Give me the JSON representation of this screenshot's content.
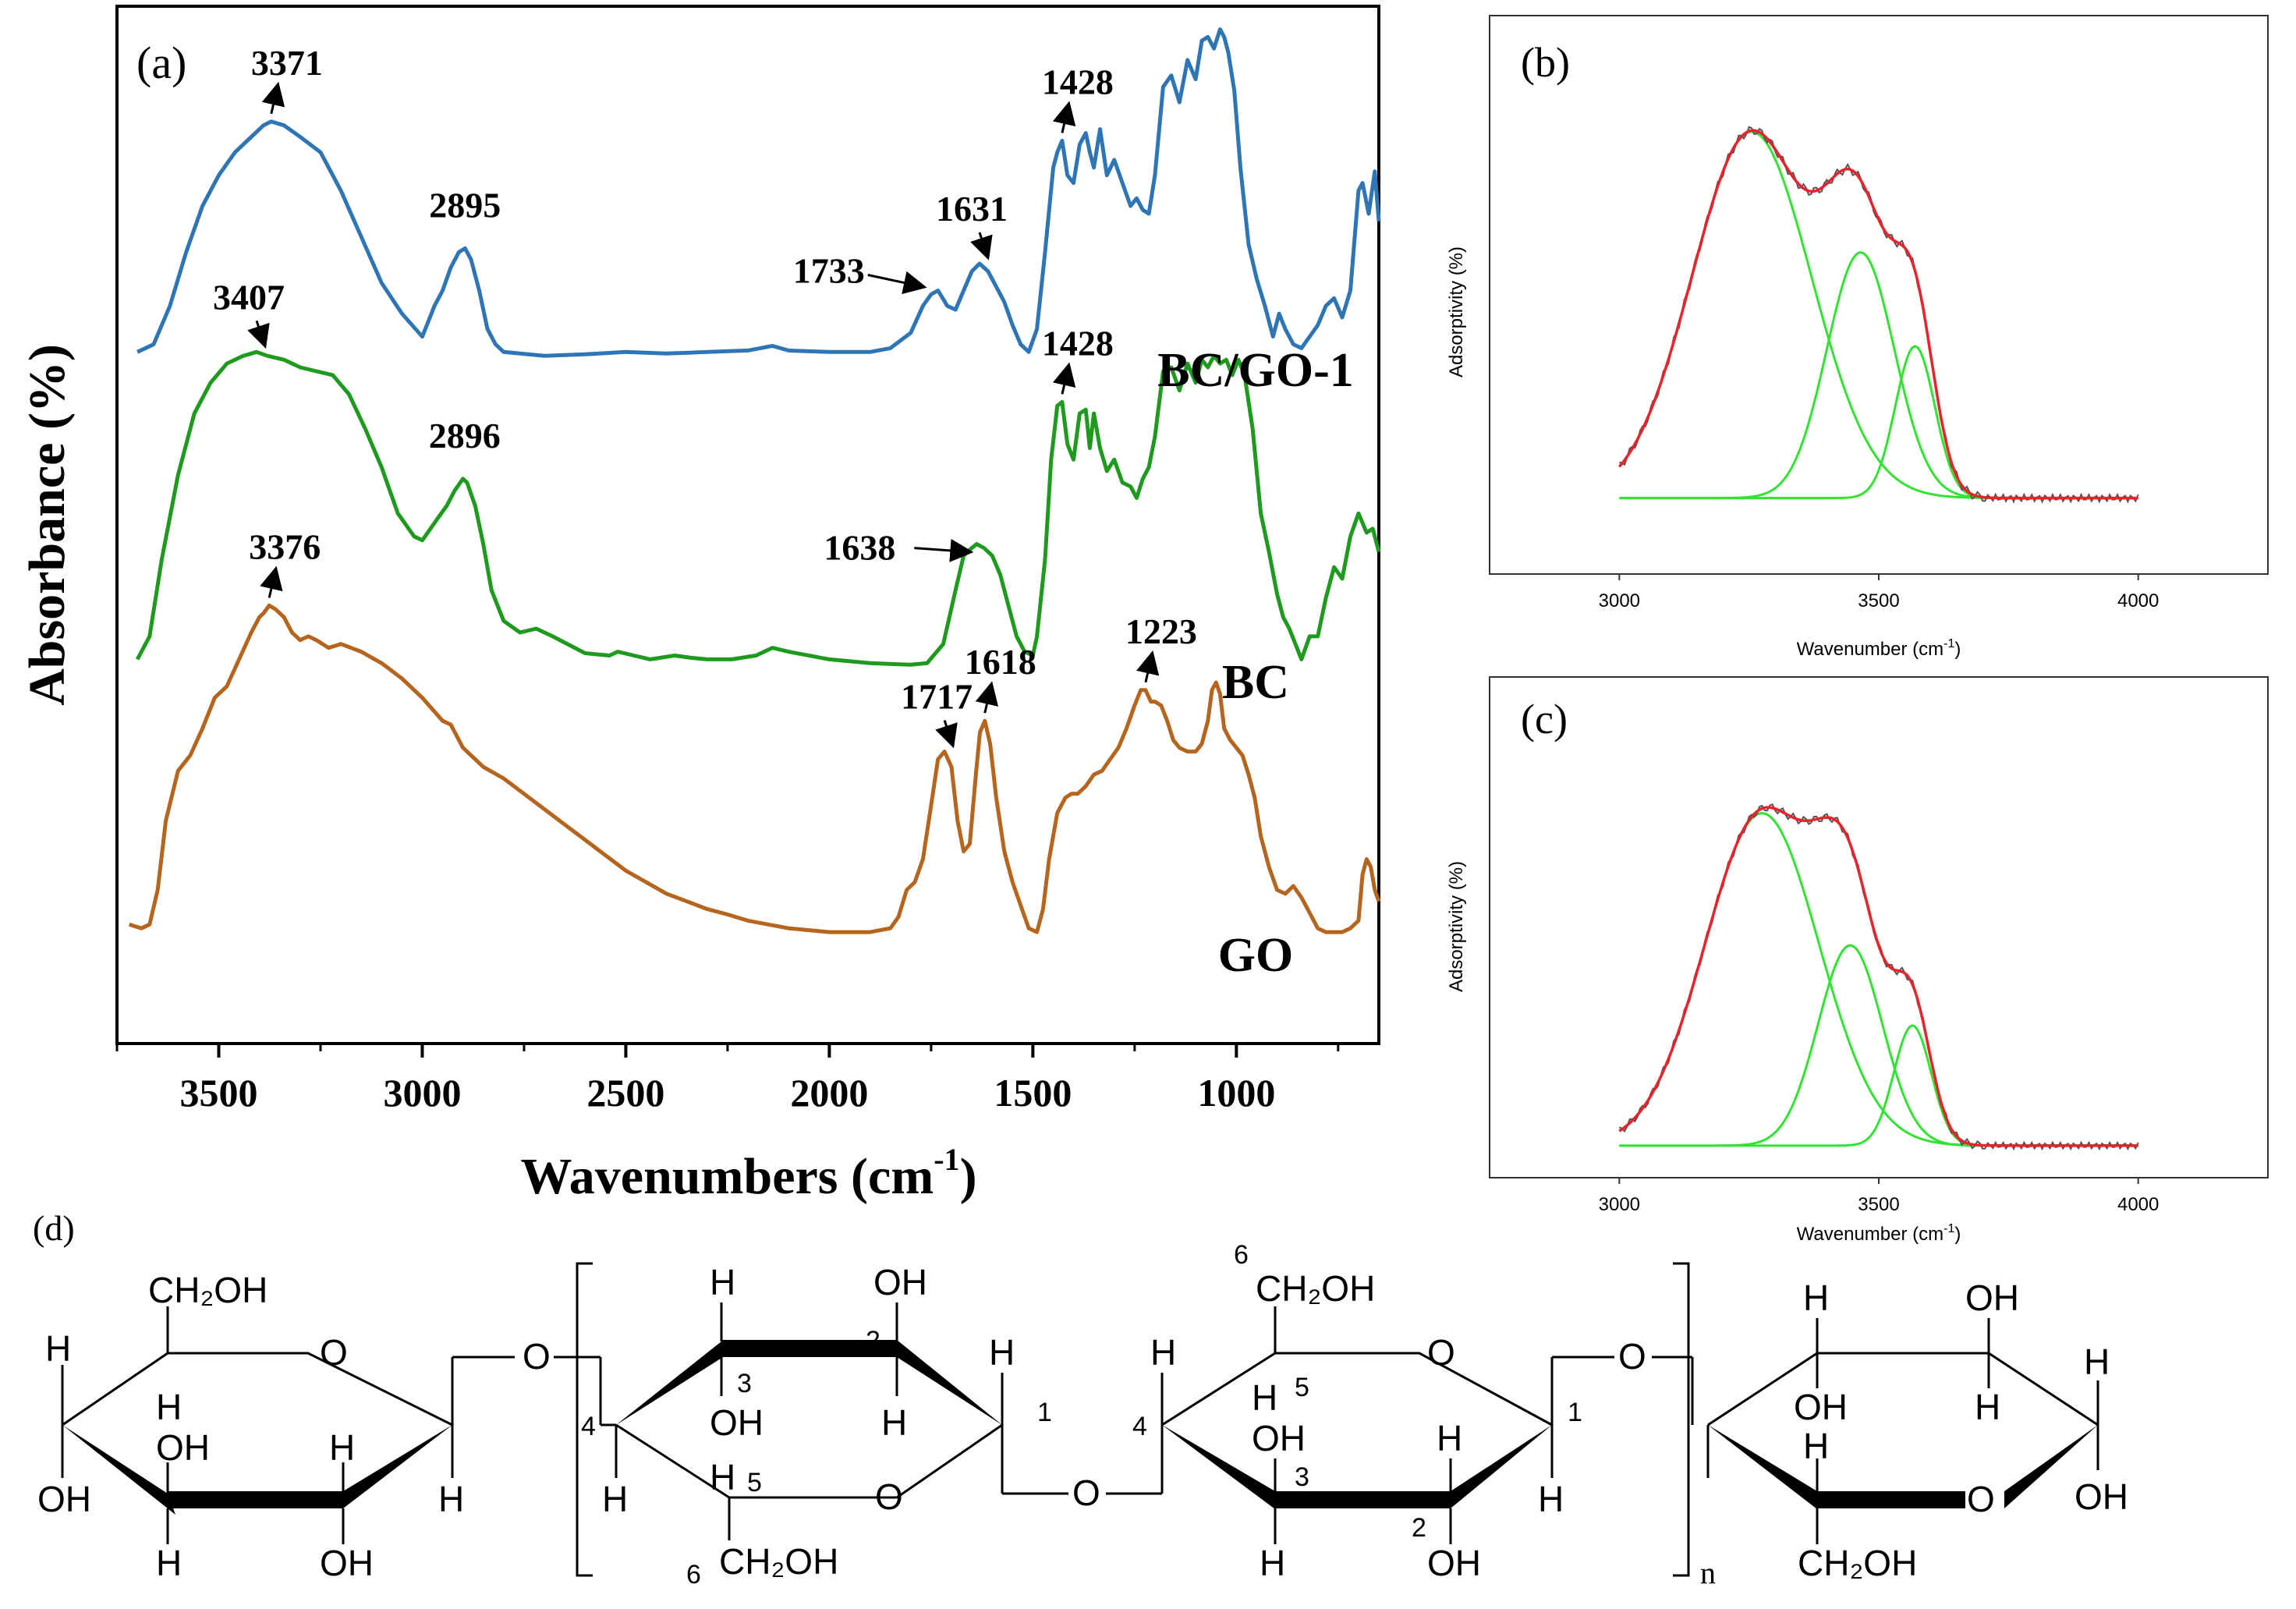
{
  "chart_data": [
    {
      "panel": "(a)",
      "type": "line",
      "xlabel": "Wavenumbers (cm",
      "xlabel_sup": "-1",
      "xlabel_end": ")",
      "ylabel": "Absorbance (%)",
      "xlim": [
        3750,
        650
      ],
      "x_reversed": true,
      "xticks": [
        3500,
        3000,
        2500,
        2000,
        1500,
        1000
      ],
      "xtick_labels": [
        "3500",
        "3000",
        "2500",
        "2000",
        "1500",
        "1000"
      ],
      "ylim": [
        0,
        13.5
      ],
      "series": [
        {
          "name": "BC/GO-1",
          "color": "#2e75b6",
          "x": [
            3700,
            3660,
            3620,
            3580,
            3540,
            3500,
            3460,
            3420,
            3390,
            3371,
            3340,
            3300,
            3250,
            3200,
            3150,
            3100,
            3050,
            3000,
            2970,
            2950,
            2930,
            2910,
            2895,
            2880,
            2860,
            2840,
            2820,
            2800,
            2700,
            2600,
            2500,
            2400,
            2300,
            2200,
            2140,
            2100,
            2000,
            1900,
            1850,
            1800,
            1770,
            1750,
            1733,
            1710,
            1690,
            1670,
            1650,
            1631,
            1610,
            1590,
            1570,
            1550,
            1530,
            1510,
            1490,
            1470,
            1450,
            1440,
            1428,
            1415,
            1400,
            1385,
            1370,
            1360,
            1350,
            1335,
            1318,
            1300,
            1280,
            1260,
            1245,
            1230,
            1215,
            1200,
            1180,
            1160,
            1140,
            1120,
            1100,
            1085,
            1070,
            1055,
            1040,
            1030,
            1020,
            1005,
            990,
            970,
            950,
            930,
            910,
            895,
            880,
            860,
            840,
            820,
            800,
            780,
            760,
            740,
            720,
            700,
            690,
            675,
            660,
            650
          ],
          "y": [
            9.0,
            9.1,
            9.6,
            10.3,
            10.9,
            11.3,
            11.6,
            11.8,
            11.95,
            12.0,
            11.95,
            11.8,
            11.6,
            11.1,
            10.5,
            9.9,
            9.5,
            9.2,
            9.6,
            9.8,
            10.1,
            10.3,
            10.35,
            10.2,
            9.8,
            9.3,
            9.1,
            9.0,
            8.95,
            8.97,
            9.0,
            8.98,
            9.0,
            9.02,
            9.08,
            9.02,
            9.0,
            9.0,
            9.05,
            9.25,
            9.6,
            9.75,
            9.8,
            9.6,
            9.55,
            9.8,
            10.05,
            10.15,
            10.05,
            9.85,
            9.65,
            9.35,
            9.1,
            9.0,
            9.3,
            10.3,
            11.4,
            11.6,
            11.75,
            11.3,
            11.2,
            11.7,
            11.85,
            11.6,
            11.4,
            11.9,
            11.3,
            11.5,
            11.2,
            10.9,
            11.0,
            10.85,
            10.8,
            11.3,
            12.45,
            12.6,
            12.25,
            12.8,
            12.55,
            13.05,
            13.1,
            12.95,
            13.2,
            13.1,
            12.9,
            12.4,
            11.4,
            10.4,
            9.95,
            9.6,
            9.2,
            9.5,
            9.3,
            9.1,
            9.05,
            9.2,
            9.35,
            9.6,
            9.7,
            9.45,
            9.8,
            11.1,
            11.2,
            10.8,
            11.35,
            10.7
          ]
        },
        {
          "name": "BC",
          "color": "#1e9a1e",
          "x": [
            3700,
            3670,
            3640,
            3600,
            3560,
            3520,
            3480,
            3440,
            3407,
            3380,
            3340,
            3300,
            3260,
            3220,
            3180,
            3140,
            3100,
            3060,
            3020,
            3000,
            2980,
            2960,
            2940,
            2920,
            2900,
            2890,
            2870,
            2850,
            2830,
            2800,
            2760,
            2720,
            2680,
            2600,
            2540,
            2520,
            2480,
            2440,
            2380,
            2340,
            2300,
            2240,
            2180,
            2140,
            2100,
            2000,
            1900,
            1800,
            1760,
            1720,
            1690,
            1670,
            1650,
            1638,
            1620,
            1600,
            1580,
            1560,
            1540,
            1520,
            1500,
            1490,
            1470,
            1455,
            1440,
            1428,
            1415,
            1400,
            1385,
            1370,
            1360,
            1350,
            1335,
            1318,
            1300,
            1280,
            1260,
            1245,
            1230,
            1215,
            1200,
            1180,
            1160,
            1140,
            1120,
            1100,
            1085,
            1070,
            1055,
            1040,
            1025,
            1010,
            995,
            980,
            960,
            940,
            920,
            900,
            885,
            870,
            855,
            840,
            820,
            800,
            780,
            760,
            740,
            720,
            700,
            680,
            665,
            650
          ],
          "y": [
            5.0,
            5.3,
            6.3,
            7.4,
            8.2,
            8.6,
            8.85,
            8.95,
            9.0,
            8.95,
            8.9,
            8.8,
            8.75,
            8.7,
            8.45,
            8.0,
            7.5,
            6.9,
            6.6,
            6.55,
            6.7,
            6.85,
            7.0,
            7.2,
            7.35,
            7.3,
            7.0,
            6.5,
            5.9,
            5.5,
            5.35,
            5.4,
            5.3,
            5.08,
            5.05,
            5.1,
            5.05,
            5.0,
            5.05,
            5.02,
            5.0,
            5.0,
            5.05,
            5.15,
            5.1,
            5.0,
            4.95,
            4.93,
            4.95,
            5.2,
            5.9,
            6.35,
            6.45,
            6.5,
            6.45,
            6.35,
            6.1,
            5.7,
            5.3,
            5.1,
            5.05,
            5.3,
            6.3,
            7.6,
            8.3,
            8.35,
            7.8,
            7.6,
            8.2,
            8.25,
            7.75,
            8.2,
            7.75,
            7.45,
            7.6,
            7.3,
            7.25,
            7.1,
            7.35,
            7.5,
            7.9,
            8.75,
            8.8,
            8.5,
            8.85,
            8.6,
            8.9,
            8.8,
            8.95,
            8.85,
            8.9,
            8.7,
            8.9,
            8.7,
            8.0,
            6.9,
            6.4,
            5.85,
            5.55,
            5.4,
            5.2,
            5.0,
            5.3,
            5.3,
            5.8,
            6.2,
            6.05,
            6.6,
            6.9,
            6.65,
            6.7,
            6.4
          ]
        },
        {
          "name": "GO",
          "color": "#b5651d",
          "x": [
            3720,
            3690,
            3670,
            3650,
            3630,
            3600,
            3570,
            3540,
            3510,
            3480,
            3450,
            3420,
            3400,
            3390,
            3376,
            3360,
            3340,
            3320,
            3300,
            3280,
            3260,
            3230,
            3200,
            3150,
            3100,
            3050,
            3000,
            2950,
            2930,
            2900,
            2850,
            2800,
            2750,
            2700,
            2650,
            2600,
            2550,
            2500,
            2450,
            2400,
            2350,
            2300,
            2250,
            2200,
            2100,
            2000,
            1900,
            1850,
            1830,
            1810,
            1790,
            1770,
            1750,
            1733,
            1717,
            1700,
            1685,
            1670,
            1655,
            1640,
            1630,
            1618,
            1605,
            1590,
            1570,
            1550,
            1530,
            1510,
            1490,
            1475,
            1460,
            1440,
            1420,
            1405,
            1390,
            1370,
            1350,
            1330,
            1310,
            1290,
            1270,
            1250,
            1235,
            1223,
            1210,
            1200,
            1185,
            1170,
            1155,
            1140,
            1120,
            1100,
            1085,
            1070,
            1060,
            1050,
            1040,
            1030,
            1015,
            1000,
            985,
            970,
            955,
            940,
            920,
            900,
            880,
            860,
            840,
            820,
            800,
            780,
            760,
            740,
            720,
            700,
            690,
            680,
            670,
            660,
            650
          ],
          "y": [
            1.55,
            1.5,
            1.55,
            2.0,
            2.9,
            3.55,
            3.75,
            4.1,
            4.5,
            4.65,
            5.0,
            5.35,
            5.55,
            5.6,
            5.7,
            5.65,
            5.55,
            5.35,
            5.25,
            5.3,
            5.25,
            5.15,
            5.2,
            5.1,
            4.95,
            4.75,
            4.5,
            4.2,
            4.15,
            3.85,
            3.6,
            3.45,
            3.25,
            3.05,
            2.85,
            2.65,
            2.45,
            2.25,
            2.1,
            1.95,
            1.85,
            1.75,
            1.68,
            1.6,
            1.5,
            1.45,
            1.45,
            1.5,
            1.65,
            2.0,
            2.1,
            2.4,
            3.1,
            3.7,
            3.8,
            3.6,
            2.9,
            2.5,
            2.6,
            3.5,
            4.05,
            4.2,
            3.9,
            3.2,
            2.5,
            2.1,
            1.8,
            1.5,
            1.45,
            1.75,
            2.4,
            3.0,
            3.2,
            3.25,
            3.25,
            3.35,
            3.5,
            3.55,
            3.7,
            3.85,
            4.1,
            4.4,
            4.6,
            4.6,
            4.45,
            4.45,
            4.4,
            4.2,
            3.95,
            3.85,
            3.8,
            3.8,
            3.9,
            4.2,
            4.6,
            4.7,
            4.55,
            4.1,
            3.95,
            3.85,
            3.75,
            3.5,
            3.2,
            2.7,
            2.3,
            2.0,
            1.95,
            2.05,
            1.9,
            1.7,
            1.5,
            1.45,
            1.45,
            1.45,
            1.5,
            1.6,
            2.2,
            2.4,
            2.3,
            2.0,
            1.85
          ]
        }
      ],
      "series_labels": [
        "BC/GO-1",
        "BC",
        "GO"
      ],
      "annotations": [
        {
          "label": "3371",
          "series": "BC/GO-1",
          "x": 3371,
          "y": 12.0,
          "arrow": "up"
        },
        {
          "label": "2895",
          "series": "BC/GO-1",
          "x": 2895,
          "y": 10.35,
          "arrow": "none"
        },
        {
          "label": "1733",
          "series": "BC/GO-1",
          "x": 1733,
          "y": 9.8,
          "arrow": "right"
        },
        {
          "label": "1631",
          "series": "BC/GO-1",
          "x": 1631,
          "y": 10.15,
          "arrow": "down"
        },
        {
          "label": "1428",
          "series": "BC/GO-1",
          "x": 1428,
          "y": 11.75,
          "arrow": "up"
        },
        {
          "label": "3407",
          "series": "BC",
          "x": 3407,
          "y": 9.0,
          "arrow": "down"
        },
        {
          "label": "2896",
          "series": "BC",
          "x": 2896,
          "y": 7.35,
          "arrow": "none"
        },
        {
          "label": "1428",
          "series": "BC",
          "x": 1428,
          "y": 8.35,
          "arrow": "up"
        },
        {
          "label": "1638",
          "series": "BC",
          "x": 1638,
          "y": 6.5,
          "arrow": "left"
        },
        {
          "label": "3376",
          "series": "GO",
          "x": 3376,
          "y": 5.7,
          "arrow": "up"
        },
        {
          "label": "1717",
          "series": "GO",
          "x": 1717,
          "y": 3.8,
          "arrow": "down"
        },
        {
          "label": "1618",
          "series": "GO",
          "x": 1618,
          "y": 4.2,
          "arrow": "up"
        },
        {
          "label": "1223",
          "series": "GO",
          "x": 1223,
          "y": 4.6,
          "arrow": "up"
        }
      ]
    },
    {
      "panel": "(b)",
      "type": "line",
      "xlabel": "Wavenumber (cm",
      "xlabel_sup": "-1",
      "xlabel_end": ")",
      "ylabel": "Adsorptivity (%)",
      "xlim": [
        2750,
        4250
      ],
      "xticks": [
        3000,
        3500,
        4000
      ],
      "xtick_labels": [
        "3000",
        "3500",
        "4000"
      ],
      "ylim": [
        0,
        1.25
      ],
      "baseline": 0.17,
      "components": [
        {
          "name": "fit",
          "color": "#e8232b"
        },
        {
          "name": "gauss-1",
          "color": "#33e333",
          "center": 3255,
          "amp": 0.82,
          "sigma": 115
        },
        {
          "name": "gauss-2",
          "color": "#33e333",
          "center": 3465,
          "amp": 0.55,
          "sigma": 65
        },
        {
          "name": "gauss-3",
          "color": "#33e333",
          "center": 3570,
          "amp": 0.34,
          "sigma": 38
        }
      ],
      "experimental_color": "#555555"
    },
    {
      "panel": "(c)",
      "type": "line",
      "xlabel": "Wavenumber (cm",
      "xlabel_sup": "-1",
      "xlabel_end": ")",
      "ylabel": "Adsorptivity (%)",
      "xlim": [
        2750,
        4250
      ],
      "xticks": [
        3000,
        3500,
        4000
      ],
      "xtick_labels": [
        "3000",
        "3500",
        "4000"
      ],
      "ylim": [
        0,
        1.25
      ],
      "baseline": 0.08,
      "components": [
        {
          "name": "fit",
          "color": "#e8232b"
        },
        {
          "name": "gauss-1",
          "color": "#33e333",
          "center": 3275,
          "amp": 0.83,
          "sigma": 110
        },
        {
          "name": "gauss-2",
          "color": "#33e333",
          "center": 3445,
          "amp": 0.5,
          "sigma": 62
        },
        {
          "name": "gauss-3",
          "color": "#33e333",
          "center": 3565,
          "amp": 0.3,
          "sigma": 36
        }
      ],
      "experimental_color": "#555555"
    }
  ],
  "structure": {
    "panel": "(d)",
    "ring1": {
      "ch2oh": "CH₂OH",
      "o": "O",
      "h": "H",
      "oh": "OH"
    },
    "glycosidic_o": "O",
    "ring2": {
      "h": "H",
      "oh": "OH",
      "o": "O",
      "ch2oh": "CH₂OH",
      "n1": "1",
      "n2": "2",
      "n3": "3",
      "n4": "4",
      "n5": "5",
      "n6": "6"
    },
    "ring3": {
      "h": "H",
      "oh": "OH",
      "o": "O",
      "ch2oh": "CH₂OH",
      "n1": "1",
      "n2": "2",
      "n3": "3",
      "n4": "4",
      "n5": "5",
      "n6": "6"
    },
    "ring4": {
      "h": "H",
      "oh": "OH",
      "o": "O",
      "ch2oh": "CH₂OH"
    },
    "repeat": "n"
  }
}
